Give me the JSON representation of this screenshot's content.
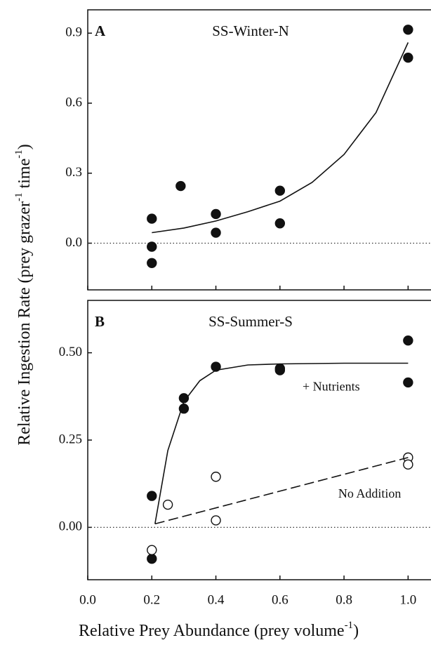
{
  "chart_data": [
    {
      "type": "scatter",
      "panel_label": "A",
      "title": "SS-Winter-N",
      "ylabel": [
        "Relative Ingestion Rate (prey grazer",
        "-1",
        " time",
        "-1",
        ")"
      ],
      "xlim": [
        0,
        1.1
      ],
      "ylim": [
        -0.2,
        1.0
      ],
      "xticks": [
        {
          "value": 0,
          "label": "0.0"
        },
        0.2,
        0.4,
        0.6,
        0.8,
        {
          "value": 1,
          "label": "1.0"
        }
      ],
      "yticks": [
        {
          "value": 0,
          "label": "0.0"
        },
        0.3,
        0.6,
        0.9
      ],
      "hline": 0,
      "series": [
        {
          "marker": "filled",
          "x": [
            0.2,
            0.2,
            0.2,
            0.29,
            0.4,
            0.4,
            0.6,
            0.6,
            1.0,
            1.0
          ],
          "values": [
            0.105,
            -0.015,
            -0.085,
            0.245,
            0.125,
            0.045,
            0.225,
            0.085,
            0.915,
            0.795
          ]
        },
        {
          "line": "solid",
          "x": [
            0.2,
            0.3,
            0.4,
            0.5,
            0.6,
            0.7,
            0.8,
            0.9,
            1.0
          ],
          "values": [
            0.045,
            0.065,
            0.095,
            0.135,
            0.18,
            0.26,
            0.38,
            0.56,
            0.86
          ]
        }
      ],
      "annotations": []
    },
    {
      "type": "scatter",
      "panel_label": "B",
      "title": "SS-Summer-S",
      "xlabel": [
        "Relative Prey Abundance (prey volume",
        "-1",
        ")"
      ],
      "xlim": [
        0,
        1.1
      ],
      "ylim": [
        -0.15,
        0.65
      ],
      "xticks": [
        {
          "value": 0,
          "label": "0.0"
        },
        0.2,
        0.4,
        0.6,
        0.8,
        {
          "value": 1,
          "label": "1.0"
        }
      ],
      "yticks": [
        {
          "value": 0,
          "label": "0.00"
        },
        {
          "value": 0.25,
          "label": "0.25"
        },
        {
          "value": 0.5,
          "label": "0.50"
        }
      ],
      "hline": 0,
      "series": [
        {
          "marker": "filled",
          "x": [
            0.2,
            0.2,
            0.3,
            0.3,
            0.4,
            0.6,
            0.6,
            1.0,
            1.0
          ],
          "values": [
            0.09,
            -0.09,
            0.37,
            0.34,
            0.46,
            0.455,
            0.45,
            0.535,
            0.415
          ]
        },
        {
          "marker": "open",
          "x": [
            0.2,
            0.25,
            0.4,
            0.4,
            1.0,
            1.0
          ],
          "values": [
            -0.065,
            0.065,
            0.145,
            0.02,
            0.2,
            0.18
          ]
        },
        {
          "line": "solid",
          "x": [
            0.21,
            0.25,
            0.3,
            0.35,
            0.4,
            0.5,
            0.6,
            0.8,
            1.0
          ],
          "values": [
            0.01,
            0.22,
            0.36,
            0.42,
            0.45,
            0.465,
            0.468,
            0.47,
            0.47
          ]
        },
        {
          "line": "dashed",
          "x": [
            0.21,
            1.0
          ],
          "values": [
            0.01,
            0.2
          ]
        }
      ],
      "annotations": [
        "+ Nutrients",
        "No Addition"
      ]
    }
  ]
}
